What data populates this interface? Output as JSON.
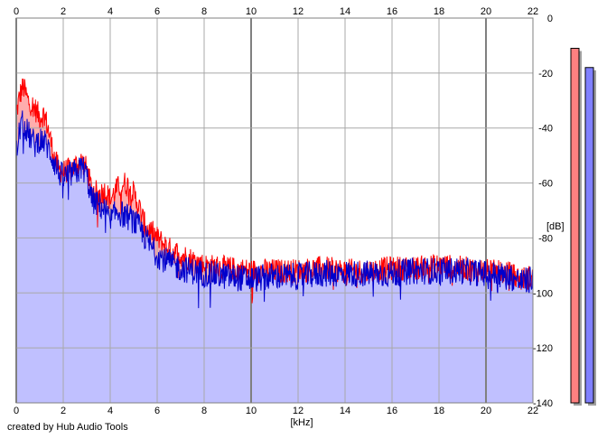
{
  "credit": "created by Hub Audio Tools",
  "chart_data": {
    "type": "line",
    "title": "",
    "xlabel": "[kHz]",
    "ylabel": "[dB]",
    "xlim": [
      0,
      22
    ],
    "ylim": [
      -140,
      0
    ],
    "x_ticks": [
      "0",
      "2",
      "4",
      "6",
      "8",
      "10",
      "12",
      "14",
      "16",
      "18",
      "20",
      "22"
    ],
    "y_ticks": [
      "0",
      "-20",
      "-40",
      "-60",
      "-80",
      "-100",
      "-120",
      "-140"
    ],
    "grid": true,
    "legend": "none",
    "series": [
      {
        "channel": "left",
        "color": "#ff0000",
        "fill": "#ff8a8a",
        "points": [
          [
            0,
            -35
          ],
          [
            0.15,
            -28
          ],
          [
            0.3,
            -25
          ],
          [
            0.5,
            -30
          ],
          [
            0.8,
            -33
          ],
          [
            1.0,
            -36
          ],
          [
            1.2,
            -35
          ],
          [
            1.4,
            -42
          ],
          [
            1.6,
            -50
          ],
          [
            1.8,
            -55
          ],
          [
            2.0,
            -56
          ],
          [
            2.3,
            -55
          ],
          [
            2.6,
            -53
          ],
          [
            2.8,
            -52
          ],
          [
            3.0,
            -55
          ],
          [
            3.2,
            -62
          ],
          [
            3.5,
            -64
          ],
          [
            3.8,
            -63
          ],
          [
            4.0,
            -66
          ],
          [
            4.3,
            -62
          ],
          [
            4.6,
            -60
          ],
          [
            4.9,
            -62
          ],
          [
            5.2,
            -68
          ],
          [
            5.5,
            -76
          ],
          [
            5.8,
            -78
          ],
          [
            6.0,
            -80
          ],
          [
            6.5,
            -84
          ],
          [
            7.0,
            -86
          ],
          [
            7.5,
            -88
          ],
          [
            8.0,
            -90
          ],
          [
            9.0,
            -91
          ],
          [
            10.0,
            -92
          ],
          [
            11.0,
            -92
          ],
          [
            12.0,
            -92
          ],
          [
            13.0,
            -91
          ],
          [
            14.0,
            -92
          ],
          [
            15.0,
            -92
          ],
          [
            16.0,
            -91
          ],
          [
            17.0,
            -91
          ],
          [
            18.0,
            -90
          ],
          [
            19.0,
            -91
          ],
          [
            20.0,
            -92
          ],
          [
            21.0,
            -93
          ],
          [
            21.5,
            -95
          ],
          [
            22.0,
            -94
          ]
        ]
      },
      {
        "channel": "right",
        "color": "#0000cc",
        "fill": "#c0c0ff",
        "points": [
          [
            0,
            -50
          ],
          [
            0.15,
            -40
          ],
          [
            0.3,
            -38
          ],
          [
            0.5,
            -42
          ],
          [
            0.8,
            -46
          ],
          [
            1.0,
            -44
          ],
          [
            1.2,
            -45
          ],
          [
            1.4,
            -48
          ],
          [
            1.6,
            -52
          ],
          [
            1.8,
            -56
          ],
          [
            2.0,
            -58
          ],
          [
            2.3,
            -57
          ],
          [
            2.6,
            -56
          ],
          [
            2.8,
            -54
          ],
          [
            3.0,
            -57
          ],
          [
            3.2,
            -66
          ],
          [
            3.5,
            -68
          ],
          [
            3.8,
            -70
          ],
          [
            4.0,
            -74
          ],
          [
            4.3,
            -70
          ],
          [
            4.6,
            -72
          ],
          [
            4.9,
            -73
          ],
          [
            5.2,
            -76
          ],
          [
            5.5,
            -80
          ],
          [
            5.8,
            -84
          ],
          [
            6.0,
            -86
          ],
          [
            6.5,
            -89
          ],
          [
            7.0,
            -91
          ],
          [
            7.5,
            -92
          ],
          [
            8.0,
            -93
          ],
          [
            9.0,
            -94
          ],
          [
            10.0,
            -95
          ],
          [
            11.0,
            -94
          ],
          [
            12.0,
            -94
          ],
          [
            13.0,
            -93
          ],
          [
            14.0,
            -93
          ],
          [
            15.0,
            -93
          ],
          [
            16.0,
            -93
          ],
          [
            17.0,
            -92
          ],
          [
            18.0,
            -92
          ],
          [
            19.0,
            -92
          ],
          [
            20.0,
            -93
          ],
          [
            21.0,
            -94
          ],
          [
            21.5,
            -96
          ],
          [
            22.0,
            -95
          ]
        ]
      }
    ],
    "level_meters": [
      {
        "channel": "left",
        "color": "#ff8080",
        "peak_db": -11
      },
      {
        "channel": "right",
        "color": "#8080ff",
        "peak_db": -18
      }
    ]
  }
}
